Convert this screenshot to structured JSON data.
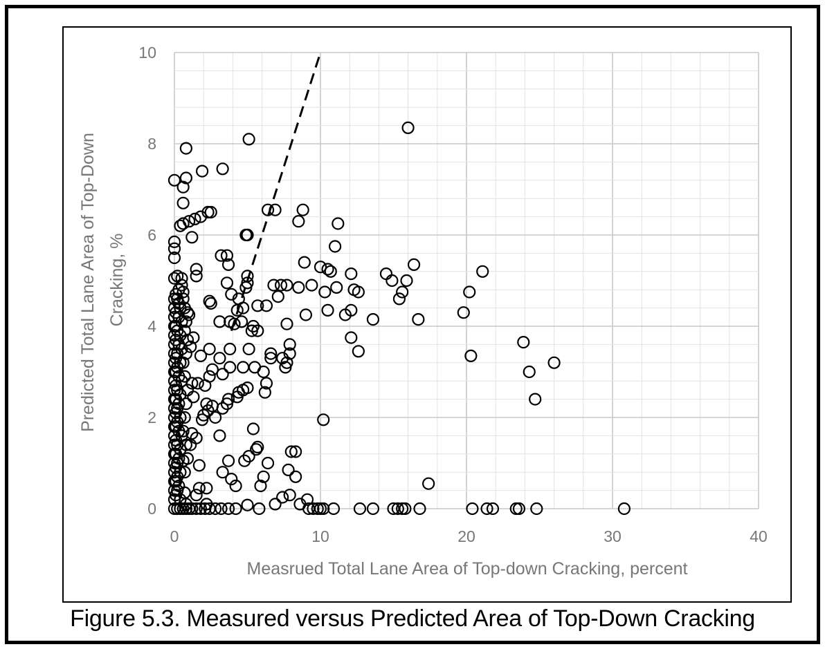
{
  "caption": "Figure 5.3.  Measured versus Predicted Area of Top-Down Cracking",
  "colors": {
    "frame": "#000000",
    "grid_major": "#c8c8c8",
    "grid_minor": "#e2e2e2",
    "axis_text": "#777777",
    "marker": "#000000"
  },
  "chart_data": {
    "type": "scatter",
    "xlabel": "Measrued Total Lane Area of Top-down Cracking, percent",
    "ylabel_lines": [
      "Predicted Total Lane Area of Top-Down",
      "Cracking, %"
    ],
    "xlim": [
      0,
      40
    ],
    "ylim": [
      0,
      10
    ],
    "xticks": [
      0,
      10,
      20,
      30,
      40
    ],
    "yticks": [
      0,
      2,
      4,
      6,
      8,
      10
    ],
    "grid": "major and minor",
    "marker": "open circle",
    "reference_line": {
      "style": "dashed",
      "x": [
        3.9,
        10.0
      ],
      "y": [
        3.9,
        10.0
      ]
    },
    "points": [
      [
        0.8,
        7.9
      ],
      [
        5.1,
        8.1
      ],
      [
        16.0,
        8.35
      ],
      [
        1.9,
        7.4
      ],
      [
        3.3,
        7.45
      ],
      [
        0,
        7.2
      ],
      [
        0.8,
        7.25
      ],
      [
        0.6,
        7.05
      ],
      [
        0.6,
        6.7
      ],
      [
        2.3,
        6.5
      ],
      [
        2.5,
        6.5
      ],
      [
        6.4,
        6.55
      ],
      [
        6.9,
        6.55
      ],
      [
        8.8,
        6.55
      ],
      [
        8.5,
        6.3
      ],
      [
        11.2,
        6.25
      ],
      [
        0.4,
        6.2
      ],
      [
        0.6,
        6.25
      ],
      [
        1.0,
        6.3
      ],
      [
        1.4,
        6.35
      ],
      [
        1.8,
        6.4
      ],
      [
        1.2,
        5.95
      ],
      [
        0,
        5.85
      ],
      [
        0,
        5.7
      ],
      [
        0,
        5.5
      ],
      [
        4.9,
        6.0
      ],
      [
        5.0,
        6.0
      ],
      [
        11.0,
        5.75
      ],
      [
        3.2,
        5.55
      ],
      [
        3.6,
        5.55
      ],
      [
        8.9,
        5.4
      ],
      [
        16.4,
        5.35
      ],
      [
        3.7,
        5.35
      ],
      [
        1.5,
        5.25
      ],
      [
        1.5,
        5.1
      ],
      [
        10.0,
        5.3
      ],
      [
        10.5,
        5.25
      ],
      [
        10.7,
        5.2
      ],
      [
        12.1,
        5.15
      ],
      [
        14.5,
        5.15
      ],
      [
        21.1,
        5.2
      ],
      [
        0.2,
        5.1
      ],
      [
        0.5,
        5.05
      ],
      [
        0,
        5.05
      ],
      [
        5.0,
        5.1
      ],
      [
        15.9,
        5.0
      ],
      [
        14.9,
        5.0
      ],
      [
        3.6,
        4.95
      ],
      [
        4.9,
        4.85
      ],
      [
        5.0,
        4.95
      ],
      [
        6.8,
        4.9
      ],
      [
        7.3,
        4.9
      ],
      [
        7.7,
        4.9
      ],
      [
        8.5,
        4.85
      ],
      [
        9.4,
        4.9
      ],
      [
        10.3,
        4.75
      ],
      [
        11.1,
        4.85
      ],
      [
        12.3,
        4.8
      ],
      [
        12.6,
        4.75
      ],
      [
        15.6,
        4.75
      ],
      [
        15.4,
        4.6
      ],
      [
        20.2,
        4.75
      ],
      [
        7.1,
        4.65
      ],
      [
        3.9,
        4.7
      ],
      [
        4.4,
        4.6
      ],
      [
        2.4,
        4.55
      ],
      [
        2.5,
        4.5
      ],
      [
        5.7,
        4.45
      ],
      [
        6.3,
        4.45
      ],
      [
        4.7,
        4.4
      ],
      [
        4.3,
        4.35
      ],
      [
        10.5,
        4.35
      ],
      [
        12.1,
        4.35
      ],
      [
        11.7,
        4.25
      ],
      [
        9.0,
        4.25
      ],
      [
        19.8,
        4.3
      ],
      [
        16.7,
        4.15
      ],
      [
        13.6,
        4.15
      ],
      [
        3.1,
        4.1
      ],
      [
        3.8,
        4.1
      ],
      [
        4.1,
        4.05
      ],
      [
        4.6,
        4.1
      ],
      [
        5.4,
        4.0
      ],
      [
        7.7,
        4.05
      ],
      [
        5.3,
        3.9
      ],
      [
        5.7,
        3.9
      ],
      [
        12.1,
        3.75
      ],
      [
        1.3,
        3.75
      ],
      [
        7.9,
        3.6
      ],
      [
        23.9,
        3.65
      ],
      [
        2.4,
        3.5
      ],
      [
        3.8,
        3.5
      ],
      [
        5.1,
        3.5
      ],
      [
        6.6,
        3.4
      ],
      [
        7.9,
        3.4
      ],
      [
        12.6,
        3.45
      ],
      [
        20.3,
        3.35
      ],
      [
        26.0,
        3.2
      ],
      [
        1.8,
        3.35
      ],
      [
        3.1,
        3.3
      ],
      [
        6.6,
        3.3
      ],
      [
        7.4,
        3.3
      ],
      [
        7.7,
        3.2
      ],
      [
        7.6,
        3.1
      ],
      [
        2.6,
        3.05
      ],
      [
        3.8,
        3.1
      ],
      [
        4.7,
        3.1
      ],
      [
        5.5,
        3.1
      ],
      [
        6.1,
        3.0
      ],
      [
        3.3,
        2.95
      ],
      [
        2.4,
        2.9
      ],
      [
        24.3,
        3.0
      ],
      [
        1.2,
        2.75
      ],
      [
        1.6,
        2.75
      ],
      [
        2.1,
        2.7
      ],
      [
        5.0,
        2.65
      ],
      [
        6.3,
        2.75
      ],
      [
        4.7,
        2.6
      ],
      [
        4.4,
        2.55
      ],
      [
        6.2,
        2.55
      ],
      [
        4.3,
        2.45
      ],
      [
        3.7,
        2.4
      ],
      [
        3.6,
        2.3
      ],
      [
        2.2,
        2.3
      ],
      [
        2.6,
        2.25
      ],
      [
        24.7,
        2.4
      ],
      [
        3.3,
        2.2
      ],
      [
        2.3,
        2.15
      ],
      [
        2.0,
        2.05
      ],
      [
        1.9,
        1.95
      ],
      [
        2.8,
        2.0
      ],
      [
        10.2,
        1.95
      ],
      [
        5.4,
        1.75
      ],
      [
        3.1,
        1.6
      ],
      [
        1.5,
        1.55
      ],
      [
        1.1,
        1.4
      ],
      [
        5.6,
        1.3
      ],
      [
        5.7,
        1.35
      ],
      [
        8.0,
        1.25
      ],
      [
        8.3,
        1.25
      ],
      [
        5.1,
        1.15
      ],
      [
        4.8,
        1.05
      ],
      [
        3.7,
        1.05
      ],
      [
        6.4,
        1.0
      ],
      [
        0.6,
        1.05
      ],
      [
        1.7,
        0.95
      ],
      [
        7.8,
        0.85
      ],
      [
        3.3,
        0.8
      ],
      [
        3.9,
        0.65
      ],
      [
        6.1,
        0.7
      ],
      [
        8.3,
        0.7
      ],
      [
        17.4,
        0.55
      ],
      [
        4.2,
        0.5
      ],
      [
        5.9,
        0.5
      ],
      [
        1.7,
        0.45
      ],
      [
        2.2,
        0.45
      ],
      [
        0.7,
        0.35
      ],
      [
        1.5,
        0.3
      ],
      [
        7.9,
        0.3
      ],
      [
        7.4,
        0.25
      ],
      [
        9.1,
        0.2
      ],
      [
        2.2,
        0.1
      ],
      [
        0.8,
        0.1
      ],
      [
        6.9,
        0.1
      ],
      [
        5.0,
        0.08
      ],
      [
        8.6,
        0.1
      ],
      [
        0.1,
        4.7
      ],
      [
        0.2,
        4.6
      ],
      [
        0.3,
        4.5
      ],
      [
        0.4,
        4.4
      ],
      [
        0.1,
        4.3
      ],
      [
        0.3,
        4.2
      ],
      [
        0.5,
        4.1
      ],
      [
        0.1,
        4.0
      ],
      [
        0.2,
        3.9
      ],
      [
        0.4,
        3.8
      ],
      [
        0.1,
        3.7
      ],
      [
        0.3,
        3.6
      ],
      [
        0.5,
        3.5
      ],
      [
        0.2,
        3.4
      ],
      [
        0.1,
        3.3
      ],
      [
        0.4,
        3.2
      ],
      [
        0.2,
        3.1
      ],
      [
        0.1,
        3.0
      ],
      [
        0.3,
        2.9
      ],
      [
        0.5,
        2.8
      ],
      [
        0.1,
        2.7
      ],
      [
        0.2,
        2.6
      ],
      [
        0.4,
        2.5
      ],
      [
        0.1,
        2.4
      ],
      [
        0.3,
        2.3
      ],
      [
        0.2,
        2.2
      ],
      [
        0.1,
        2.1
      ],
      [
        0.4,
        2.0
      ],
      [
        0.2,
        1.9
      ],
      [
        0.1,
        1.8
      ],
      [
        0.3,
        1.7
      ],
      [
        0.5,
        1.6
      ],
      [
        0.1,
        1.5
      ],
      [
        0.2,
        1.4
      ],
      [
        0.4,
        1.3
      ],
      [
        0.1,
        1.2
      ],
      [
        0.3,
        1.1
      ],
      [
        0.2,
        1.0
      ],
      [
        0.1,
        0.9
      ],
      [
        0.4,
        0.8
      ],
      [
        0.2,
        0.7
      ],
      [
        0.1,
        0.6
      ],
      [
        0.3,
        0.5
      ],
      [
        0.2,
        0.4
      ],
      [
        0.1,
        0.3
      ],
      [
        0.4,
        0.2
      ],
      [
        0.6,
        4.6
      ],
      [
        0.7,
        4.4
      ],
      [
        0.9,
        4.3
      ],
      [
        0.8,
        4.1
      ],
      [
        0.7,
        3.9
      ],
      [
        0.9,
        3.7
      ],
      [
        0.8,
        3.4
      ],
      [
        0.6,
        3.2
      ],
      [
        0.7,
        2.9
      ],
      [
        0.9,
        2.6
      ],
      [
        0.8,
        2.3
      ],
      [
        0.7,
        2.0
      ],
      [
        0.6,
        1.7
      ],
      [
        0.8,
        1.4
      ],
      [
        0.9,
        1.1
      ],
      [
        0.7,
        0.8
      ],
      [
        1.0,
        4.25
      ],
      [
        1.1,
        3.55
      ],
      [
        1.3,
        2.45
      ],
      [
        1.2,
        1.65
      ],
      [
        0.5,
        4.9
      ],
      [
        0.3,
        4.8
      ],
      [
        0.6,
        4.75
      ],
      [
        0,
        4.6
      ],
      [
        0,
        4.4
      ],
      [
        0,
        4.2
      ],
      [
        0,
        4.0
      ],
      [
        0,
        3.8
      ],
      [
        0,
        3.6
      ],
      [
        0,
        3.4
      ],
      [
        0,
        3.2
      ],
      [
        0,
        3.0
      ],
      [
        0,
        2.8
      ],
      [
        0,
        2.6
      ],
      [
        0,
        2.4
      ],
      [
        0,
        2.2
      ],
      [
        0,
        2.0
      ],
      [
        0,
        1.8
      ],
      [
        0,
        1.6
      ],
      [
        0,
        1.4
      ],
      [
        0,
        1.2
      ],
      [
        0,
        1.0
      ],
      [
        0,
        0.8
      ],
      [
        0,
        0.6
      ],
      [
        0,
        0.4
      ],
      [
        0,
        0.2
      ],
      [
        0,
        0
      ],
      [
        0.2,
        0
      ],
      [
        0.4,
        0
      ],
      [
        0.6,
        0
      ],
      [
        0.8,
        0
      ],
      [
        1.0,
        0
      ],
      [
        1.2,
        0
      ],
      [
        1.5,
        0
      ],
      [
        1.8,
        0
      ],
      [
        2.1,
        0
      ],
      [
        2.4,
        0
      ],
      [
        2.8,
        0
      ],
      [
        3.2,
        0
      ],
      [
        3.7,
        0
      ],
      [
        4.2,
        0
      ],
      [
        5.8,
        0
      ],
      [
        9.2,
        0
      ],
      [
        9.5,
        0
      ],
      [
        9.8,
        0
      ],
      [
        10.0,
        0
      ],
      [
        10.2,
        0
      ],
      [
        10.9,
        0
      ],
      [
        12.7,
        0
      ],
      [
        13.6,
        0
      ],
      [
        15.0,
        0
      ],
      [
        15.3,
        0
      ],
      [
        15.6,
        0
      ],
      [
        15.8,
        0
      ],
      [
        16.8,
        0
      ],
      [
        20.4,
        0
      ],
      [
        21.4,
        0
      ],
      [
        21.8,
        0
      ],
      [
        23.4,
        0
      ],
      [
        23.6,
        0
      ],
      [
        24.8,
        0
      ],
      [
        30.8,
        0
      ]
    ]
  }
}
